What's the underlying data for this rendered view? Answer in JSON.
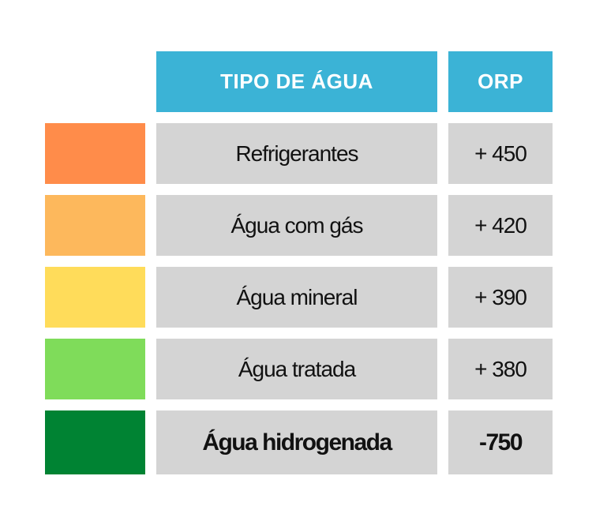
{
  "chart_data": {
    "type": "table",
    "columns": [
      "TIPO DE ÁGUA",
      "ORP"
    ],
    "rows": [
      {
        "tipo": "Refrigerantes",
        "orp_label": "+ 450",
        "orp": 450,
        "color": "#ff8c4a",
        "emphasis": false
      },
      {
        "tipo": "Água com gás",
        "orp_label": "+ 420",
        "orp": 420,
        "color": "#fdb85c",
        "emphasis": false
      },
      {
        "tipo": "Água mineral",
        "orp_label": "+ 390",
        "orp": 390,
        "color": "#ffdc5a",
        "emphasis": false
      },
      {
        "tipo": "Água tratada",
        "orp_label": "+ 380",
        "orp": 380,
        "color": "#7fdc5a",
        "emphasis": false
      },
      {
        "tipo": "Água hidrogenada",
        "orp_label": "-750",
        "orp": -750,
        "color": "#008333",
        "emphasis": true
      }
    ]
  },
  "colors": {
    "header_bg": "#3bb3d6",
    "cell_bg": "#d4d4d4"
  }
}
